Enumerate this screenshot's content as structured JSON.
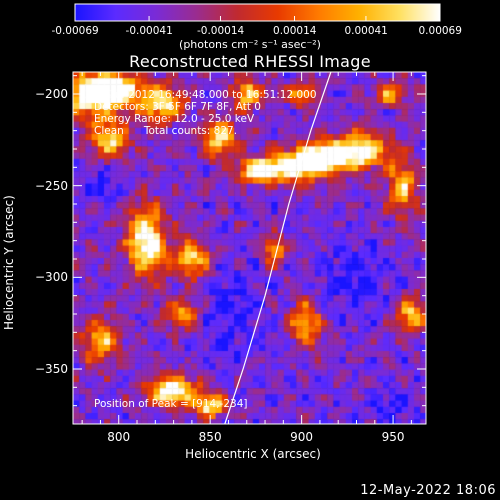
{
  "chart_data": {
    "type": "heatmap",
    "title": "Reconstructed RHESSI Image",
    "xlabel": "Heliocentric X (arcsec)",
    "ylabel": "Heliocentric Y (arcsec)",
    "xlim": [
      775,
      968
    ],
    "ylim": [
      -380,
      -188
    ],
    "x_ticks": [
      800,
      850,
      900,
      950
    ],
    "y_ticks": [
      -200,
      -250,
      -300,
      -350
    ],
    "grid": false,
    "colorbar": {
      "title": "(photons cm⁻² s⁻¹ asec⁻²)",
      "tick_labels": [
        "-0.00069",
        "-0.00041",
        "-0.00014",
        "0.00014",
        "0.00041",
        "0.00069"
      ],
      "tick_values": [
        -0.00069,
        -0.00041,
        -0.00014,
        0.00014,
        0.00041,
        0.00069
      ],
      "range": [
        -0.00069,
        0.00069
      ],
      "colors": [
        "#1a14ff",
        "#5b2bff",
        "#7a2bd6",
        "#9a2c8f",
        "#c02a30",
        "#e83a00",
        "#ff7a00",
        "#ffb000",
        "#ffe060",
        "#ffffff"
      ]
    },
    "annotations": [
      "15-Jul-2012 16:49:48.000 to 16:51:12.000",
      "Detectors: 3F 5F 6F 7F 8F, Att 0",
      "Energy Range: 12.0 - 25.0 keV",
      "Clean      Total counts: 827."
    ],
    "peak_label": "Position of Peak = [914,-234]",
    "peak": {
      "x": 914,
      "y": -234
    },
    "limb_curve": [
      [
        916,
        -188
      ],
      [
        905,
        -220
      ],
      [
        893,
        -260
      ],
      [
        880,
        -310
      ],
      [
        868,
        -350
      ],
      [
        858,
        -380
      ]
    ],
    "bright_regions": [
      {
        "x": 785,
        "y": -200,
        "rx": 14,
        "ry": 12,
        "level": 0.95
      },
      {
        "x": 800,
        "y": -198,
        "rx": 12,
        "ry": 8,
        "level": 0.8
      },
      {
        "x": 823,
        "y": -205,
        "rx": 12,
        "ry": 10,
        "level": 0.75
      },
      {
        "x": 795,
        "y": -225,
        "rx": 10,
        "ry": 10,
        "level": 0.7
      },
      {
        "x": 855,
        "y": -225,
        "rx": 10,
        "ry": 10,
        "level": 0.7
      },
      {
        "x": 870,
        "y": -200,
        "rx": 8,
        "ry": 8,
        "level": 0.65
      },
      {
        "x": 914,
        "y": -234,
        "rx": 16,
        "ry": 8,
        "level": 1.0
      },
      {
        "x": 895,
        "y": -240,
        "rx": 16,
        "ry": 8,
        "level": 0.85
      },
      {
        "x": 875,
        "y": -242,
        "rx": 10,
        "ry": 6,
        "level": 0.8
      },
      {
        "x": 935,
        "y": -230,
        "rx": 12,
        "ry": 10,
        "level": 0.7
      },
      {
        "x": 815,
        "y": -280,
        "rx": 10,
        "ry": 18,
        "level": 0.9
      },
      {
        "x": 840,
        "y": -290,
        "rx": 10,
        "ry": 10,
        "level": 0.7
      },
      {
        "x": 835,
        "y": -320,
        "rx": 10,
        "ry": 8,
        "level": 0.55
      },
      {
        "x": 790,
        "y": -335,
        "rx": 10,
        "ry": 12,
        "level": 0.6
      },
      {
        "x": 830,
        "y": -362,
        "rx": 14,
        "ry": 8,
        "level": 0.85
      },
      {
        "x": 850,
        "y": -370,
        "rx": 8,
        "ry": 6,
        "level": 0.75
      },
      {
        "x": 902,
        "y": -325,
        "rx": 8,
        "ry": 12,
        "level": 0.6
      },
      {
        "x": 885,
        "y": -285,
        "rx": 6,
        "ry": 8,
        "level": 0.55
      },
      {
        "x": 955,
        "y": -250,
        "rx": 8,
        "ry": 16,
        "level": 0.6
      },
      {
        "x": 960,
        "y": -320,
        "rx": 8,
        "ry": 10,
        "level": 0.6
      },
      {
        "x": 900,
        "y": -200,
        "rx": 8,
        "ry": 6,
        "level": 0.55
      },
      {
        "x": 948,
        "y": -200,
        "rx": 8,
        "ry": 6,
        "level": 0.55
      }
    ],
    "dark_regions": [
      {
        "x": 860,
        "y": -320,
        "rx": 20,
        "ry": 30
      },
      {
        "x": 930,
        "y": -300,
        "rx": 20,
        "ry": 20
      },
      {
        "x": 790,
        "y": -250,
        "rx": 10,
        "ry": 10
      },
      {
        "x": 950,
        "y": -370,
        "rx": 12,
        "ry": 10
      }
    ]
  },
  "timestamp": "12-May-2022 18:06"
}
